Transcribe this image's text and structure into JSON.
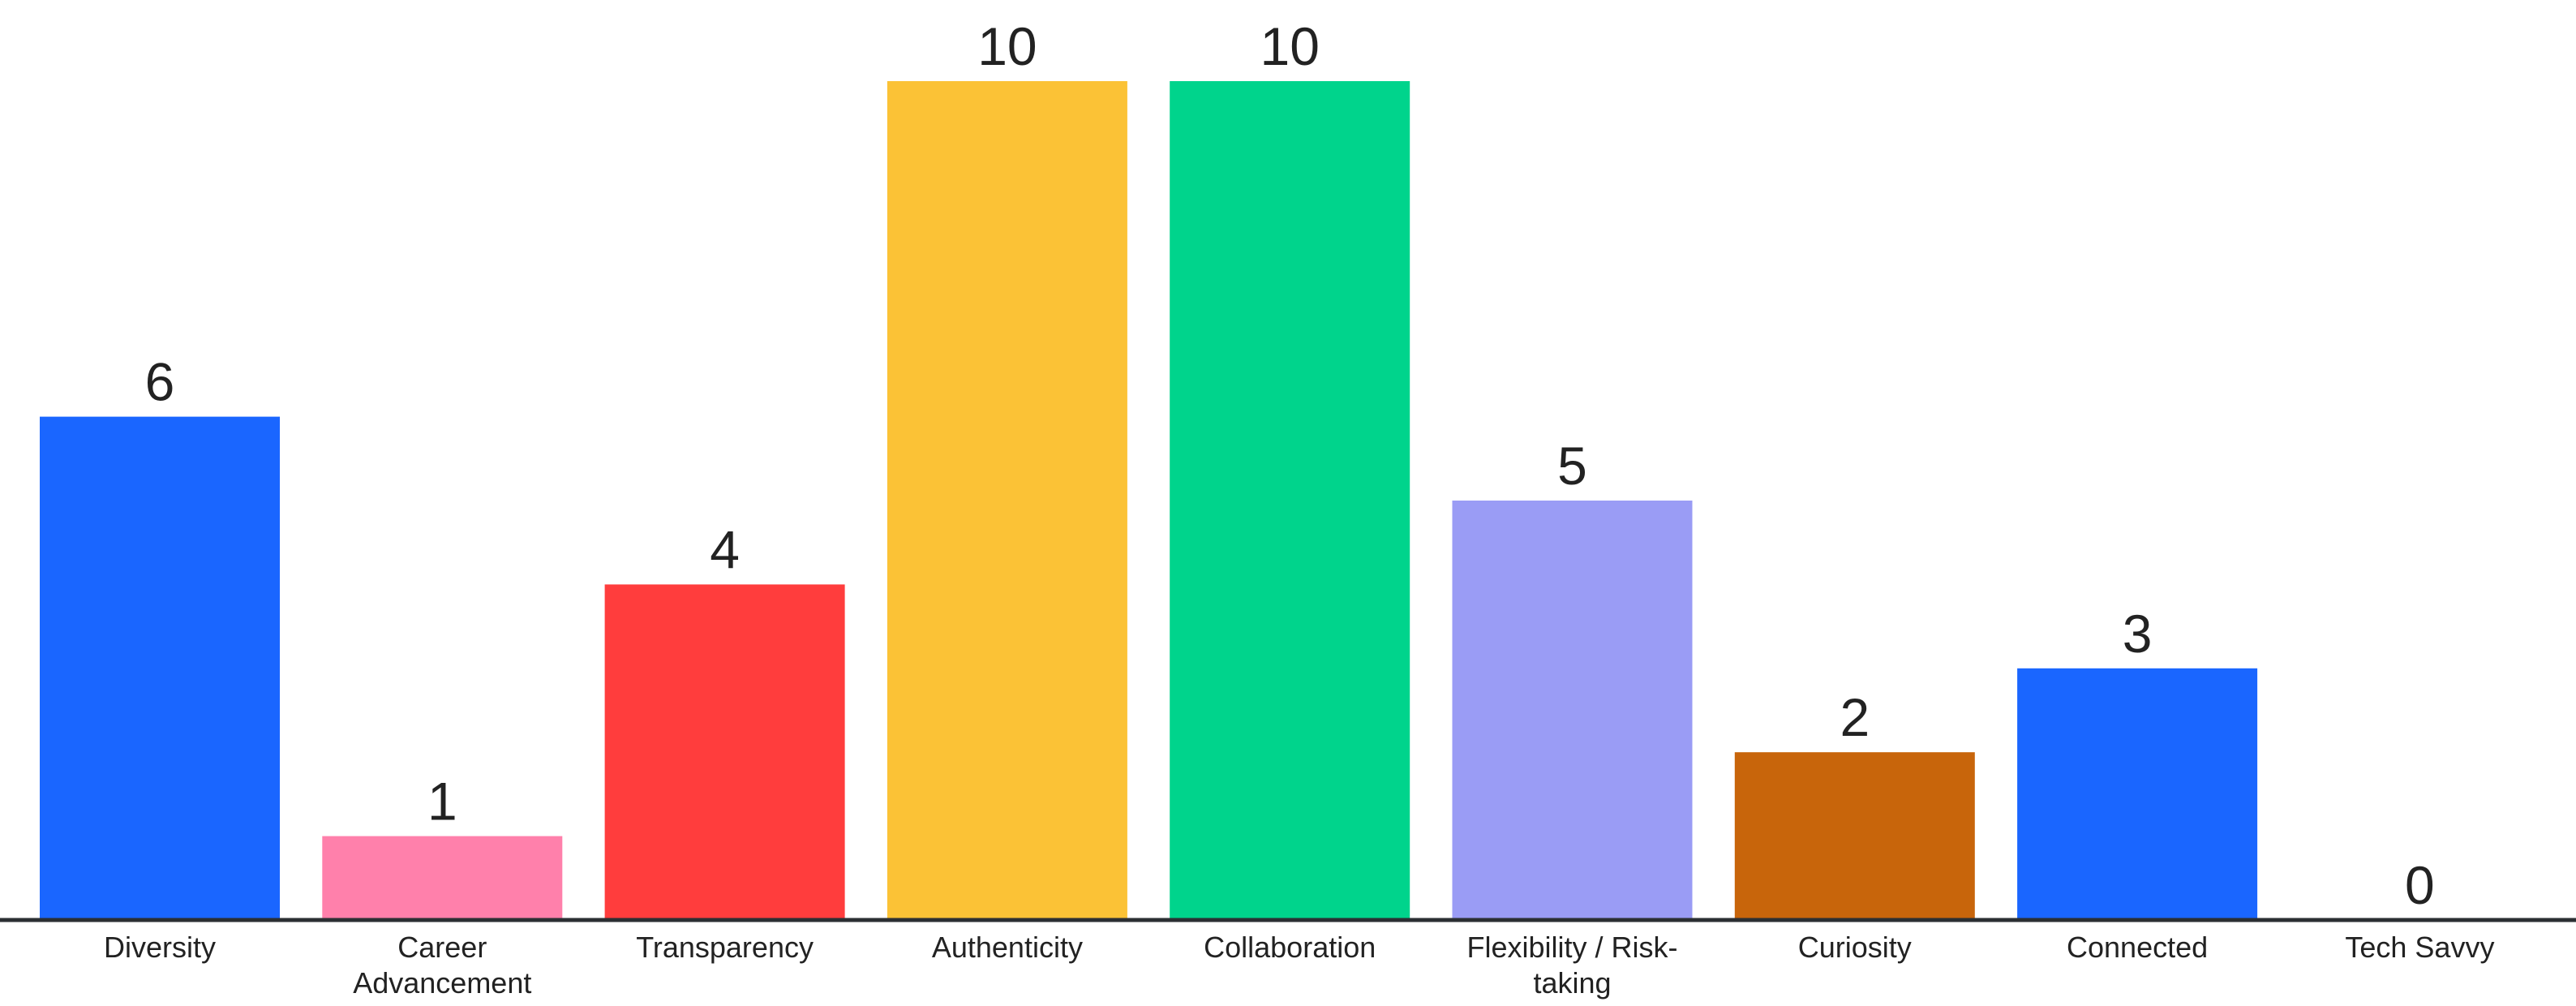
{
  "chart_data": {
    "type": "bar",
    "categories": [
      [
        "Diversity"
      ],
      [
        "Career",
        "Advancement"
      ],
      [
        "Transparency"
      ],
      [
        "Authenticity"
      ],
      [
        "Collaboration"
      ],
      [
        "Flexibility / Risk-",
        "taking"
      ],
      [
        "Curiosity"
      ],
      [
        "Connected"
      ],
      [
        "Tech Savvy"
      ]
    ],
    "values": [
      6,
      1,
      4,
      10,
      10,
      5,
      2,
      3,
      0
    ],
    "colors": [
      "#1a66ff",
      "#ff80ab",
      "#ff3d3d",
      "#fbc236",
      "#00d48c",
      "#9a9cf5",
      "#c8650b",
      "#1a66ff",
      "#1a66ff"
    ],
    "ylim": [
      0,
      10
    ],
    "grid": false,
    "baseline_color": "#2b2f33",
    "text_color": "#222222"
  }
}
